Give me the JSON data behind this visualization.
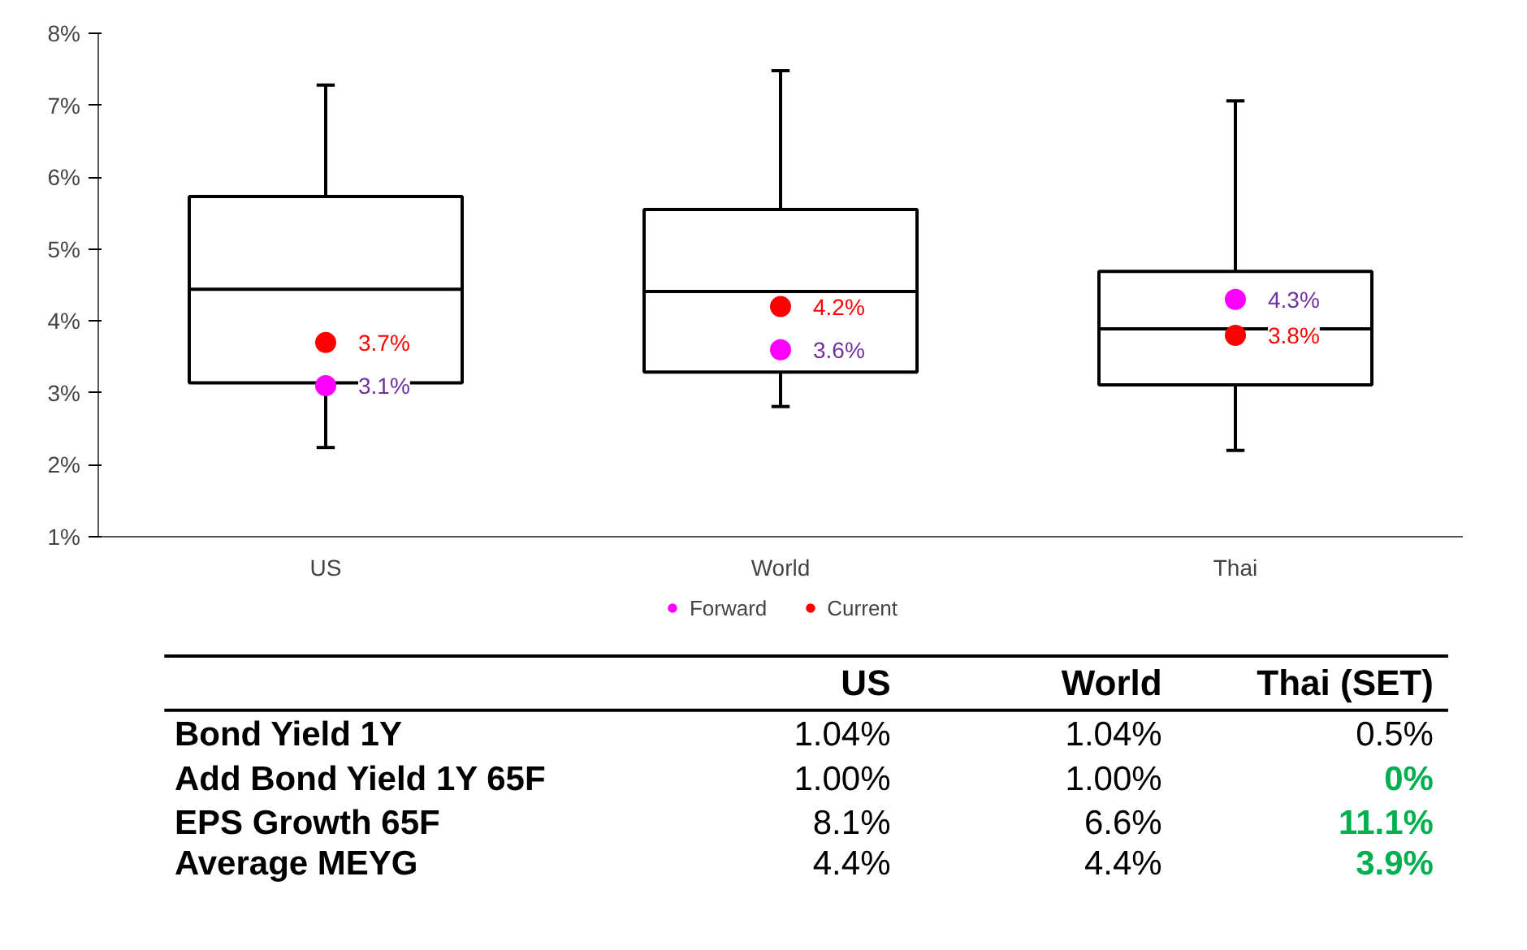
{
  "chart_data": {
    "type": "box",
    "categories": [
      "US",
      "World",
      "Thai"
    ],
    "boxes": [
      {
        "low": 2.24,
        "q1": 3.14,
        "median": 4.44,
        "q3": 5.73,
        "high": 7.28
      },
      {
        "low": 2.81,
        "q1": 3.29,
        "median": 4.41,
        "q3": 5.55,
        "high": 7.48
      },
      {
        "low": 2.2,
        "q1": 3.11,
        "median": 3.89,
        "q3": 4.69,
        "high": 7.06
      }
    ],
    "series": [
      {
        "name": "Forward",
        "type": "scatter",
        "color": "#ff00ff",
        "x": [
          "US",
          "World",
          "Thai"
        ],
        "values": [
          3.1,
          3.6,
          4.3
        ],
        "value_labels": [
          "3.1%",
          "3.6%",
          "4.3%"
        ]
      },
      {
        "name": "Current",
        "type": "scatter",
        "color": "#ff0000",
        "x": [
          "US",
          "World",
          "Thai"
        ],
        "values": [
          3.7,
          4.2,
          3.8
        ],
        "value_labels": [
          "3.7%",
          "4.2%",
          "3.8%"
        ]
      }
    ],
    "ylim": [
      1,
      8
    ],
    "yticks": [
      {
        "value": 1,
        "label": "1%"
      },
      {
        "value": 2,
        "label": "2%"
      },
      {
        "value": 3,
        "label": "3%"
      },
      {
        "value": 4,
        "label": "4%"
      },
      {
        "value": 5,
        "label": "5%"
      },
      {
        "value": 6,
        "label": "6%"
      },
      {
        "value": 7,
        "label": "7%"
      },
      {
        "value": 8,
        "label": "8%"
      }
    ],
    "legend": "bottom",
    "marker": "circle",
    "grid": false,
    "annotations": [
      "US",
      "World",
      "Thai (SET)",
      "Bond Yield 1Y",
      "1.04%",
      "1.04%",
      "0.5%",
      "Add Bond Yield 1Y 65F",
      "1.00%",
      "1.00%",
      "0%",
      "EPS Growth 65F",
      "8.1%",
      "6.6%",
      "11.1%",
      "Average MEYG",
      "4.4%",
      "4.4%",
      "3.9%"
    ]
  }
}
